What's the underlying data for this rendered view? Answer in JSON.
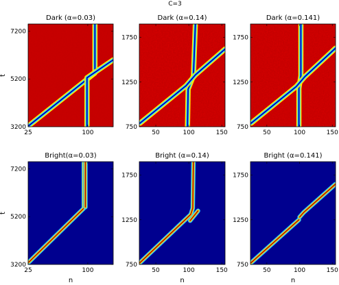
{
  "figure": {
    "suptitle": "C=3"
  },
  "colors": {
    "dark_background": "#c40000",
    "bright_background": "#00008f",
    "soliton_core_dark": "#0000a8",
    "soliton_core_bright": "#a00000",
    "frame": "#000000"
  },
  "chart_data": [
    {
      "type": "heatmap",
      "id": "dark-003",
      "title": "Dark (α=0.03)",
      "xlabel": "",
      "ylabel": "t",
      "xlim": [
        25,
        132
      ],
      "ylim": [
        3200,
        7500
      ],
      "xticks": [
        25,
        100
      ],
      "yticks": [
        3200,
        5200,
        7200
      ],
      "variant": "dark",
      "noise": 0.2,
      "tracks": [
        {
          "name": "",
          "points": [
            [
              109,
              7500
            ],
            [
              109,
              5450
            ],
            [
              26,
              3250
            ]
          ]
        },
        {
          "name": "",
          "points": [
            [
              99,
              3200
            ],
            [
              99,
              5250
            ],
            [
              132,
              6000
            ]
          ]
        }
      ]
    },
    {
      "type": "heatmap",
      "id": "dark-014",
      "title": "Dark (α=0.14)",
      "xlabel": "",
      "ylabel": "",
      "xlim": [
        25,
        155
      ],
      "ylim": [
        750,
        1900
      ],
      "xticks": [
        50,
        100,
        150
      ],
      "yticks": [
        750,
        1250,
        1750
      ],
      "variant": "dark",
      "noise": 0.7,
      "tracks": [
        {
          "name": "",
          "points": [
            [
              110,
              1900
            ],
            [
              107,
              1320
            ],
            [
              99,
              1170
            ],
            [
              98,
              750
            ]
          ]
        },
        {
          "name": "",
          "points": [
            [
              26,
              790
            ],
            [
              96,
              1210
            ],
            [
              110,
              1330
            ],
            [
              155,
              1620
            ]
          ]
        }
      ]
    },
    {
      "type": "heatmap",
      "id": "dark-0141",
      "title": "Dark (α=0.141)",
      "xlabel": "",
      "ylabel": "",
      "xlim": [
        25,
        155
      ],
      "ylim": [
        750,
        1900
      ],
      "xticks": [
        50,
        100,
        150
      ],
      "yticks": [
        750,
        1250,
        1750
      ],
      "variant": "dark",
      "noise": 0.7,
      "tracks": [
        {
          "name": "",
          "points": [
            [
              102,
              1900
            ],
            [
              102,
              1320
            ],
            [
              99,
              1180
            ],
            [
              99,
              750
            ]
          ]
        },
        {
          "name": "",
          "points": [
            [
              26,
              790
            ],
            [
              95,
              1200
            ],
            [
              108,
              1310
            ],
            [
              155,
              1630
            ]
          ]
        }
      ]
    },
    {
      "type": "heatmap",
      "id": "bright-003",
      "title": "Bright(α=0.03)",
      "xlabel": "n",
      "ylabel": "t",
      "xlim": [
        25,
        132
      ],
      "ylim": [
        3200,
        7500
      ],
      "xticks": [
        25,
        100
      ],
      "yticks": [
        3200,
        5200,
        7200
      ],
      "variant": "bright",
      "noise": 0,
      "tracks": [
        {
          "name": "",
          "points": [
            [
              95,
              7500
            ],
            [
              95,
              5550
            ],
            [
              26,
              3300
            ]
          ]
        },
        {
          "name": "",
          "points": [
            [
              97,
              7500
            ],
            [
              97,
              5600
            ]
          ]
        }
      ]
    },
    {
      "type": "heatmap",
      "id": "bright-014",
      "title": "Bright (α=0.14)",
      "xlabel": "n",
      "ylabel": "",
      "xlim": [
        25,
        155
      ],
      "ylim": [
        750,
        1900
      ],
      "xticks": [
        50,
        100,
        150
      ],
      "yticks": [
        750,
        1250,
        1750
      ],
      "variant": "bright",
      "noise": 0,
      "tracks": [
        {
          "name": "",
          "points": [
            [
              107,
              1900
            ],
            [
              106,
              1380
            ],
            [
              103,
              1310
            ],
            [
              26,
              770
            ]
          ]
        },
        {
          "name": "",
          "points": [
            [
              102,
              1240
            ],
            [
              114,
              1350
            ]
          ]
        }
      ]
    },
    {
      "type": "heatmap",
      "id": "bright-0141",
      "title": "Bright (α=0.141)",
      "xlabel": "n",
      "ylabel": "",
      "xlim": [
        25,
        155
      ],
      "ylim": [
        750,
        1900
      ],
      "xticks": [
        50,
        100,
        150
      ],
      "yticks": [
        750,
        1250,
        1750
      ],
      "variant": "bright",
      "noise": 0,
      "tracks": [
        {
          "name": "",
          "points": [
            [
              26,
              770
            ],
            [
              99,
              1250
            ]
          ]
        },
        {
          "name": "",
          "points": [
            [
              100,
              1280
            ],
            [
              106,
              1330
            ],
            [
              155,
              1650
            ]
          ]
        }
      ]
    }
  ]
}
